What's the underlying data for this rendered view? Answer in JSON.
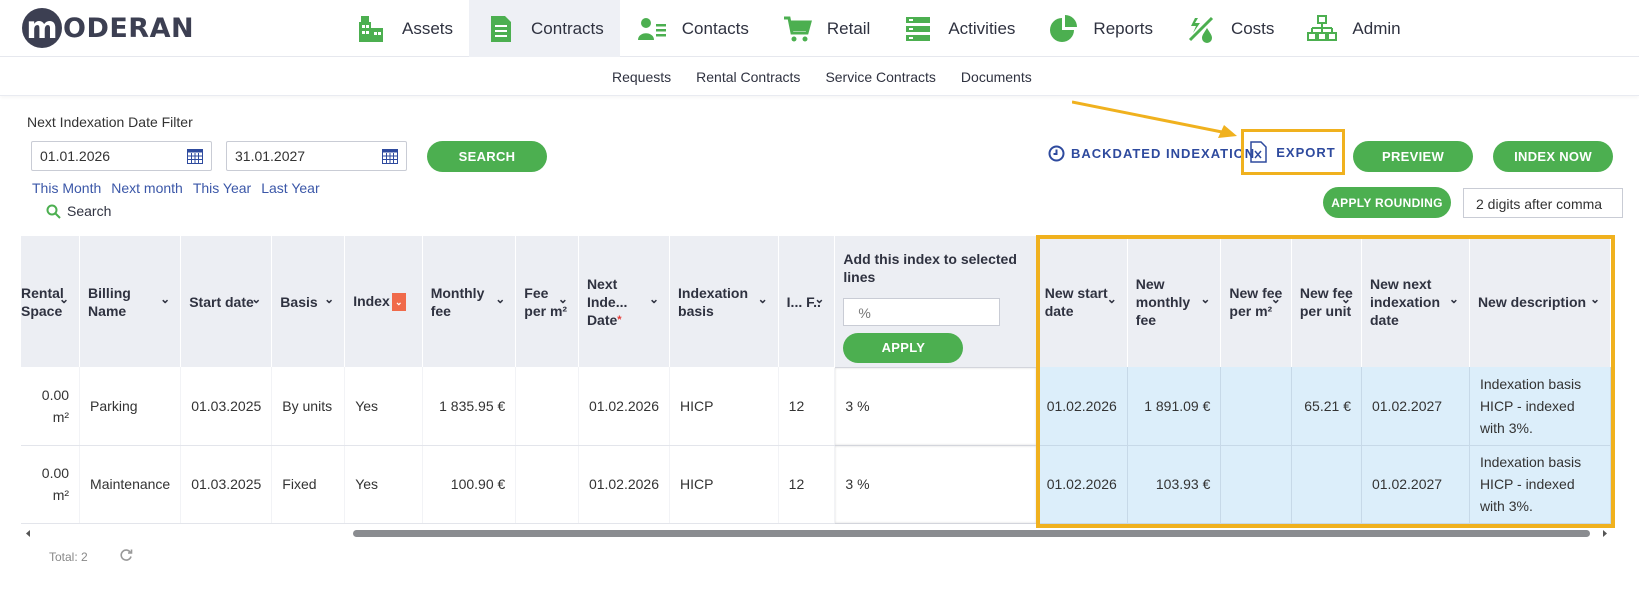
{
  "app": {
    "logo_letter": "m",
    "logo_text": "ODERAN"
  },
  "nav": [
    {
      "label": "Assets",
      "icon": "buildings-icon"
    },
    {
      "label": "Contracts",
      "icon": "document-icon",
      "active": true
    },
    {
      "label": "Contacts",
      "icon": "contacts-icon"
    },
    {
      "label": "Retail",
      "icon": "cart-icon"
    },
    {
      "label": "Activities",
      "icon": "list-icon"
    },
    {
      "label": "Reports",
      "icon": "pie-chart-icon"
    },
    {
      "label": "Costs",
      "icon": "costs-icon"
    },
    {
      "label": "Admin",
      "icon": "org-chart-icon"
    }
  ],
  "subnav": [
    "Requests",
    "Rental Contracts",
    "Service Contracts",
    "Documents"
  ],
  "filter": {
    "label": "Next Indexation Date Filter",
    "from": "01.01.2026",
    "to": "31.01.2027",
    "search_button": "SEARCH",
    "quick": [
      "This Month",
      "Next month",
      "This Year",
      "Last Year"
    ],
    "search_link": "Search"
  },
  "actions": {
    "backdated": "BACKDATED INDEXATION",
    "export": "EXPORT",
    "preview": "PREVIEW",
    "index_now": "INDEX NOW",
    "apply_rounding": "APPLY ROUNDING",
    "rounding_value": "2 digits after comma"
  },
  "table": {
    "headers": {
      "rental_space": "Rental Space",
      "billing_name": "Billing Name",
      "start_date": "Start date",
      "basis": "Basis",
      "index": "Index",
      "monthly_fee": "Monthly fee",
      "fee_per_m2": "Fee per m²",
      "next_index_date": "Next Inde... Date",
      "indexation_basis": "Indexation basis",
      "i_f": "I... F..",
      "add_index": "Add this index to selected lines",
      "add_index_placeholder": "%",
      "apply": "APPLY",
      "new_start_date": "New start date",
      "new_monthly_fee": "New monthly fee",
      "new_fee_per_m2": "New fee per m²",
      "new_fee_per_unit": "New fee per unit",
      "new_next_index_date": "New next indexation date",
      "new_description": "New description"
    },
    "rows": [
      {
        "rental_space": "0.00 m²",
        "billing_name": "Parking",
        "start_date": "01.03.2025",
        "basis": "By units",
        "index": "Yes",
        "monthly_fee": "1 835.95 €",
        "fee_per_m2": "",
        "next_index_date": "01.02.2026",
        "indexation_basis": "HICP",
        "i_f": "12",
        "add_index": "3 %",
        "new_start_date": "01.02.2026",
        "new_monthly_fee": "1 891.09 €",
        "new_fee_per_m2": "",
        "new_fee_per_unit": "65.21 €",
        "new_next_index_date": "01.02.2027",
        "new_description": "Indexation basis HICP - indexed with 3%."
      },
      {
        "rental_space": "0.00 m²",
        "billing_name": "Maintenance",
        "start_date": "01.03.2025",
        "basis": "Fixed",
        "index": "Yes",
        "monthly_fee": "100.90 €",
        "fee_per_m2": "",
        "next_index_date": "01.02.2026",
        "indexation_basis": "HICP",
        "i_f": "12",
        "add_index": "3 %",
        "new_start_date": "01.02.2026",
        "new_monthly_fee": "103.93 €",
        "new_fee_per_m2": "",
        "new_fee_per_unit": "",
        "new_next_index_date": "01.02.2027",
        "new_description": "Indexation basis HICP - indexed with 3%."
      }
    ]
  },
  "footer": {
    "total": "Total: 2"
  },
  "colors": {
    "accent_green": "#4caf50",
    "highlight": "#f0b11e",
    "link_blue": "#2e4a9e",
    "selected_cell": "#dceefa"
  }
}
